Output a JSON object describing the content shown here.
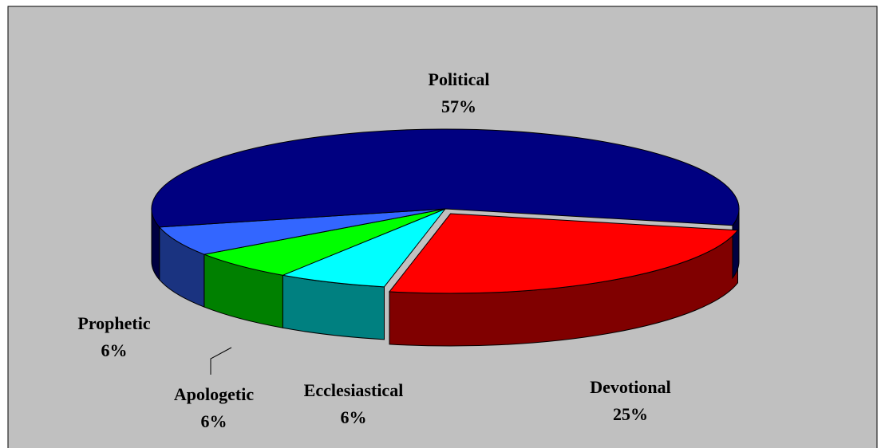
{
  "chart_data": {
    "type": "pie",
    "categories": [
      "Devotional",
      "Ecclesiastical",
      "Apologetic",
      "Prophetic",
      "Political"
    ],
    "values": [
      25,
      6,
      6,
      6,
      57
    ],
    "value_labels": [
      "25%",
      "6%",
      "6%",
      "6%",
      "57%"
    ],
    "colors": [
      "#ff0000",
      "#00ffff",
      "#00ff00",
      "#3366ff",
      "#000080"
    ]
  }
}
